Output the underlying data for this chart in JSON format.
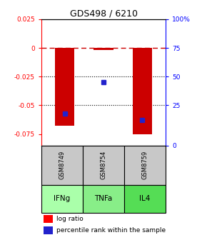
{
  "title": "GDS498 / 6210",
  "samples": [
    "GSM8749",
    "GSM8754",
    "GSM8759"
  ],
  "agents": [
    "IFNg",
    "TNFa",
    "IL4"
  ],
  "log_ratios": [
    -0.068,
    -0.002,
    -0.075
  ],
  "percentile_ranks_raw": [
    0.25,
    0.5,
    0.2
  ],
  "ymin": -0.085,
  "ymax": 0.025,
  "left_ticks": [
    0.025,
    0.0,
    -0.025,
    -0.05,
    -0.075
  ],
  "left_tick_labels": [
    "0.025",
    "0",
    "-0.025",
    "-0.05",
    "-0.075"
  ],
  "right_tick_vals": [
    0.025,
    0.0,
    -0.025,
    -0.05,
    -0.085
  ],
  "right_tick_labels": [
    "100%",
    "75",
    "50",
    "25",
    "0"
  ],
  "bar_color": "#cc0000",
  "dot_color": "#2222cc",
  "gsm_bg": "#c8c8c8",
  "agent_colors": [
    "#aaffaa",
    "#88ee88",
    "#55dd55"
  ],
  "legend_labels": [
    "log ratio",
    "percentile rank within the sample"
  ]
}
